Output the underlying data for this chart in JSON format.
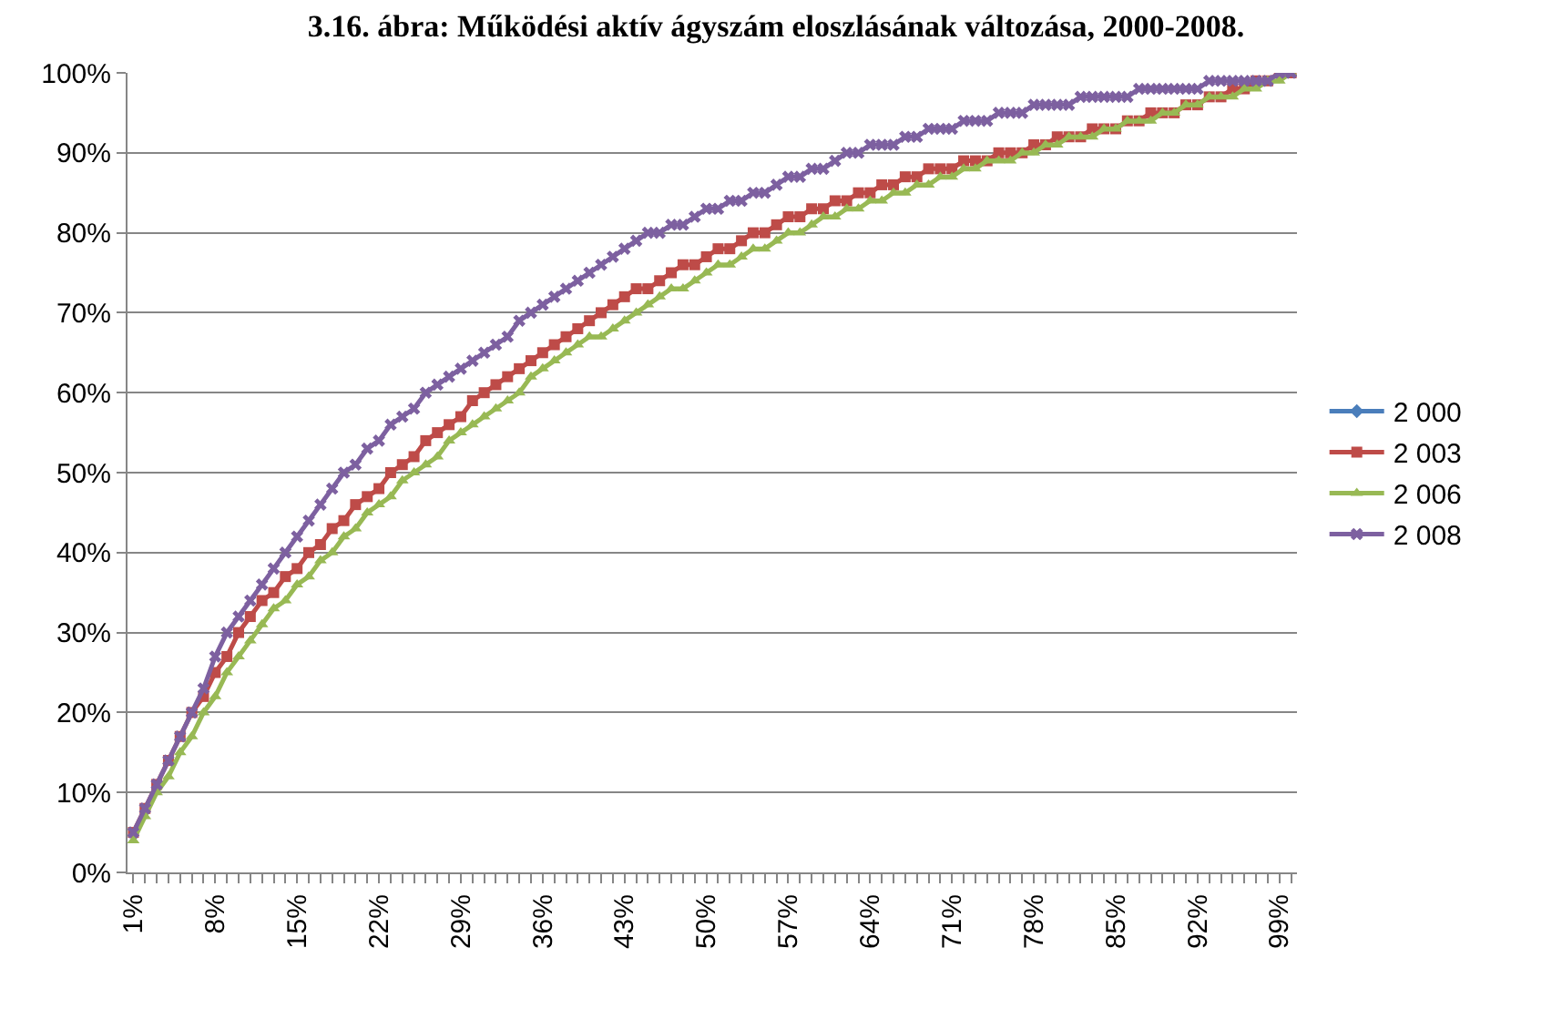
{
  "chart_data": {
    "type": "line",
    "title": "3.16. ábra: Működési aktív ágyszám eloszlásának változása, 2000-2008.",
    "categories": [
      "1%",
      null,
      null,
      null,
      null,
      null,
      null,
      "8%",
      null,
      null,
      null,
      null,
      null,
      null,
      "15%",
      null,
      null,
      null,
      null,
      null,
      null,
      "22%",
      null,
      null,
      null,
      null,
      null,
      null,
      "29%",
      null,
      null,
      null,
      null,
      null,
      null,
      "36%",
      null,
      null,
      null,
      null,
      null,
      null,
      "43%",
      null,
      null,
      null,
      null,
      null,
      null,
      "50%",
      null,
      null,
      null,
      null,
      null,
      null,
      "57%",
      null,
      null,
      null,
      null,
      null,
      null,
      "64%",
      null,
      null,
      null,
      null,
      null,
      null,
      "71%",
      null,
      null,
      null,
      null,
      null,
      null,
      "78%",
      null,
      null,
      null,
      null,
      null,
      null,
      "85%",
      null,
      null,
      null,
      null,
      null,
      null,
      "92%",
      null,
      null,
      null,
      null,
      null,
      null,
      "99%",
      null
    ],
    "series": [
      {
        "name": "2 000",
        "color": "#4a7ebb",
        "marker": "diamond",
        "values": [
          null,
          null,
          null,
          null,
          null,
          null,
          null,
          null,
          null,
          null,
          null,
          null,
          null,
          null,
          null,
          null,
          null,
          null,
          null,
          null,
          null,
          null,
          null,
          null,
          null,
          null,
          null,
          null,
          null,
          null,
          null,
          null,
          null,
          null,
          null,
          null,
          null,
          null,
          null,
          null,
          null,
          null,
          null,
          null,
          null,
          null,
          null,
          null,
          null,
          null,
          null,
          null,
          null,
          null,
          null,
          null,
          null,
          null,
          null,
          null,
          null,
          null,
          null,
          null,
          null,
          null,
          null,
          null,
          null,
          null,
          null,
          null,
          null,
          null,
          null,
          null,
          null,
          null,
          null,
          null,
          null,
          null,
          null,
          null,
          null,
          null,
          null,
          null,
          null,
          null,
          null,
          null,
          null,
          null,
          null,
          null,
          null,
          null,
          null,
          null
        ]
      },
      {
        "name": "2 003",
        "color": "#be4b48",
        "marker": "square",
        "values": [
          5,
          8,
          11,
          14,
          17,
          20,
          22,
          25,
          27,
          30,
          32,
          34,
          35,
          37,
          38,
          40,
          41,
          43,
          44,
          46,
          47,
          48,
          50,
          51,
          52,
          54,
          55,
          56,
          57,
          59,
          60,
          61,
          62,
          63,
          64,
          65,
          66,
          67,
          68,
          69,
          70,
          71,
          72,
          73,
          73,
          74,
          75,
          76,
          76,
          77,
          78,
          78,
          79,
          80,
          80,
          81,
          82,
          82,
          83,
          83,
          84,
          84,
          85,
          85,
          86,
          86,
          87,
          87,
          88,
          88,
          88,
          89,
          89,
          89,
          90,
          90,
          90,
          91,
          91,
          92,
          92,
          92,
          93,
          93,
          93,
          94,
          94,
          95,
          95,
          95,
          96,
          96,
          97,
          97,
          98,
          98,
          99,
          99,
          100,
          100
        ]
      },
      {
        "name": "2 006",
        "color": "#98b954",
        "marker": "triangle",
        "values": [
          4,
          7,
          10,
          12,
          15,
          17,
          20,
          22,
          25,
          27,
          29,
          31,
          33,
          34,
          36,
          37,
          39,
          40,
          42,
          43,
          45,
          46,
          47,
          49,
          50,
          51,
          52,
          54,
          55,
          56,
          57,
          58,
          59,
          60,
          62,
          63,
          64,
          65,
          66,
          67,
          67,
          68,
          69,
          70,
          71,
          72,
          73,
          73,
          74,
          75,
          76,
          76,
          77,
          78,
          78,
          79,
          80,
          80,
          81,
          82,
          82,
          83,
          83,
          84,
          84,
          85,
          85,
          86,
          86,
          87,
          87,
          88,
          88,
          89,
          89,
          89,
          90,
          90,
          91,
          91,
          92,
          92,
          92,
          93,
          93,
          94,
          94,
          94,
          95,
          95,
          96,
          96,
          97,
          97,
          97,
          98,
          98,
          99,
          99,
          100
        ]
      },
      {
        "name": "2 008",
        "color": "#7d60a0",
        "marker": "cross",
        "values": [
          5,
          8,
          11,
          14,
          17,
          20,
          23,
          27,
          30,
          32,
          34,
          36,
          38,
          40,
          42,
          44,
          46,
          48,
          50,
          51,
          53,
          54,
          56,
          57,
          58,
          60,
          61,
          62,
          63,
          64,
          65,
          66,
          67,
          69,
          70,
          71,
          72,
          73,
          74,
          75,
          76,
          77,
          78,
          79,
          80,
          80,
          81,
          81,
          82,
          83,
          83,
          84,
          84,
          85,
          85,
          86,
          87,
          87,
          88,
          88,
          89,
          90,
          90,
          91,
          91,
          91,
          92,
          92,
          93,
          93,
          93,
          94,
          94,
          94,
          95,
          95,
          95,
          96,
          96,
          96,
          96,
          97,
          97,
          97,
          97,
          97,
          98,
          98,
          98,
          98,
          98,
          98,
          99,
          99,
          99,
          99,
          99,
          99,
          100,
          100
        ]
      }
    ],
    "ylim": [
      0,
      100
    ],
    "yticks": [
      {
        "value": 0,
        "label": "0%"
      },
      {
        "value": 10,
        "label": "10%"
      },
      {
        "value": 20,
        "label": "20%"
      },
      {
        "value": 30,
        "label": "30%"
      },
      {
        "value": 40,
        "label": "40%"
      },
      {
        "value": 50,
        "label": "50%"
      },
      {
        "value": 60,
        "label": "60%"
      },
      {
        "value": 70,
        "label": "70%"
      },
      {
        "value": 80,
        "label": "80%"
      },
      {
        "value": 90,
        "label": "90%"
      },
      {
        "value": 100,
        "label": "100%"
      }
    ],
    "grid": "y",
    "legend": "right"
  }
}
